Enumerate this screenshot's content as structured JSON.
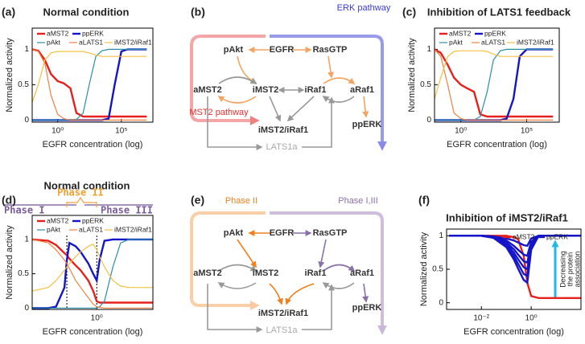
{
  "chart_data": [
    {
      "type": "line",
      "panel_label": "(a)",
      "title": "Normal condition",
      "x_label": "EGFR concentration (log)",
      "y_label": "Normalized activity",
      "x_scale": "log",
      "grid": false,
      "x": [
        0.01,
        0.03,
        0.1,
        0.3,
        1,
        3,
        10,
        30,
        100,
        300,
        1000,
        3000,
        10000,
        30000,
        100000,
        300000,
        1000000,
        10000000
      ],
      "xlim": [
        0.01,
        30000000
      ],
      "xticks": [
        {
          "value": 1,
          "label": "10⁰"
        },
        {
          "value": 100000,
          "label": "10⁵"
        }
      ],
      "ylim": [
        -0.03,
        1.3
      ],
      "yticks": [
        0,
        0.5,
        1
      ],
      "series": [
        {
          "name": "aMST2",
          "color": "#e8201c",
          "values": [
            1,
            0.98,
            0.85,
            0.65,
            0.55,
            0.52,
            0.45,
            0.1,
            0.05,
            0.05,
            0.05,
            0.05,
            0.05,
            0.05,
            0.05,
            0.05,
            0.05,
            0.05
          ]
        },
        {
          "name": "ppERK",
          "color": "#1414c8",
          "values": [
            0,
            0,
            0,
            0,
            0,
            0,
            0,
            0,
            0,
            0,
            0,
            0,
            0.02,
            0.5,
            0.97,
            1,
            1,
            1
          ]
        },
        {
          "name": "pAkt",
          "color": "#2a8fa8",
          "values": [
            0,
            0,
            0,
            0,
            0,
            0,
            0,
            0.01,
            0.1,
            0.5,
            0.9,
            0.98,
            1,
            1,
            1,
            1,
            1,
            1
          ]
        },
        {
          "name": "aLATS1",
          "color": "#f08040",
          "values": [
            1,
            0.97,
            0.8,
            0.35,
            0.08,
            0.02,
            0,
            0,
            0,
            0,
            0,
            0,
            0,
            0,
            0,
            0,
            0,
            0
          ]
        },
        {
          "name": "iMST2/iRaf1",
          "color": "#f5c040",
          "values": [
            0.25,
            0.5,
            0.85,
            0.95,
            0.97,
            0.97,
            0.97,
            0.97,
            0.97,
            0.95,
            0.92,
            0.9,
            0.9,
            0.9,
            0.9,
            0.9,
            0.9,
            0.9
          ]
        }
      ]
    },
    {
      "type": "line",
      "panel_label": "(c)",
      "title": "Inhibition of LATS1 feedback",
      "x_label": "EGFR concentration (log)",
      "y_label": "Normalized activity",
      "x_scale": "log",
      "grid": false,
      "x": [
        0.01,
        0.03,
        0.1,
        0.3,
        1,
        3,
        10,
        30,
        100,
        300,
        1000,
        3000,
        10000,
        30000,
        100000,
        300000,
        1000000,
        10000000
      ],
      "xlim": [
        0.01,
        30000000
      ],
      "xticks": [
        {
          "value": 1,
          "label": "10⁰"
        },
        {
          "value": 100000,
          "label": "10⁵"
        }
      ],
      "ylim": [
        -0.03,
        1.3
      ],
      "yticks": [
        0,
        0.5,
        1
      ],
      "series": [
        {
          "name": "aMST2",
          "color": "#e8201c",
          "values": [
            1,
            0.95,
            0.78,
            0.6,
            0.5,
            0.45,
            0.4,
            0.08,
            0.05,
            0.05,
            0.05,
            0.05,
            0.05,
            0.05,
            0.05,
            0.05,
            0.05,
            0.05
          ]
        },
        {
          "name": "ppERK",
          "color": "#1414c8",
          "values": [
            0,
            0,
            0,
            0,
            0,
            0,
            0,
            0,
            0,
            0,
            0,
            0.02,
            0.3,
            0.9,
            1,
            1,
            1,
            1
          ]
        },
        {
          "name": "pAkt",
          "color": "#2a8fa8",
          "values": [
            0,
            0,
            0,
            0,
            0,
            0,
            0,
            0.05,
            0.4,
            0.85,
            0.98,
            1,
            1,
            1,
            1,
            1,
            1,
            1
          ]
        },
        {
          "name": "aLATS1",
          "color": "#f08040",
          "values": [
            1,
            0.9,
            0.5,
            0.1,
            0.02,
            0,
            0,
            0,
            0,
            0,
            0,
            0,
            0,
            0,
            0,
            0,
            0,
            0
          ]
        },
        {
          "name": "iMST2/iRaf1",
          "color": "#f5c040",
          "values": [
            0.3,
            0.6,
            0.9,
            0.97,
            0.98,
            0.98,
            0.98,
            0.98,
            0.97,
            0.93,
            0.9,
            0.9,
            0.9,
            0.9,
            0.9,
            0.9,
            0.9,
            0.9
          ]
        }
      ]
    },
    {
      "type": "line",
      "panel_label": "(d)",
      "title": "Normal condition",
      "x_label": "EGFR concentration (log)",
      "y_label": "Normalized activity",
      "x_scale": "log",
      "grid": false,
      "phases": [
        "Phase I",
        "Phase II",
        "Phase III"
      ],
      "vlines": [
        0.014,
        1
      ],
      "x": [
        0.0001,
        0.001,
        0.003,
        0.01,
        0.014,
        0.02,
        0.05,
        0.1,
        0.3,
        0.6,
        1,
        1.5,
        3,
        10,
        30,
        100,
        1000,
        3000
      ],
      "xlim": [
        0.0001,
        3000
      ],
      "xticks": [
        {
          "value": 1,
          "label": "10⁰"
        }
      ],
      "ylim": [
        -0.02,
        1.35
      ],
      "yticks": [
        0,
        0.5,
        1
      ],
      "series": [
        {
          "name": "aMST2",
          "color": "#e8201c",
          "values": [
            1,
            0.98,
            0.92,
            0.8,
            0.77,
            0.72,
            0.62,
            0.55,
            0.4,
            0.25,
            0.1,
            0.08,
            0.08,
            0.08,
            0.08,
            0.08,
            0.08,
            0.08
          ]
        },
        {
          "name": "ppERK",
          "color": "#1414c8",
          "values": [
            0,
            0,
            0.02,
            0.3,
            0.7,
            0.95,
            0.9,
            0.82,
            0.65,
            0.5,
            0.4,
            0.7,
            0.98,
            1,
            1,
            1,
            1,
            1
          ]
        },
        {
          "name": "pAkt",
          "color": "#2a8fa8",
          "values": [
            0,
            0,
            0,
            0,
            0,
            0,
            0,
            0,
            0,
            0,
            0,
            0.02,
            0.1,
            0.6,
            0.95,
            1,
            1,
            1
          ]
        },
        {
          "name": "aLATS1",
          "color": "#f08040",
          "values": [
            1,
            0.95,
            0.85,
            0.7,
            0.65,
            0.58,
            0.4,
            0.3,
            0.15,
            0.06,
            0.02,
            0.01,
            0,
            0,
            0,
            0,
            0,
            0
          ]
        },
        {
          "name": "iMST2/iRaf1",
          "color": "#f5c040",
          "values": [
            0.25,
            0.3,
            0.4,
            0.55,
            0.6,
            0.65,
            0.75,
            0.82,
            0.9,
            0.93,
            0.85,
            0.75,
            0.6,
            0.4,
            0.32,
            0.3,
            0.3,
            0.3
          ]
        }
      ]
    },
    {
      "type": "line",
      "panel_label": "(f)",
      "title": "Inhibition of iMST2/iRaf1",
      "x_label": "EGFR concentration (log)",
      "y_label": "Normalized activity",
      "x_scale": "log",
      "grid": false,
      "annotation": [
        "Decreasing",
        "the protein",
        "association"
      ],
      "x": [
        0.0005,
        0.001,
        0.01,
        0.03,
        0.1,
        0.2,
        0.3,
        0.5,
        0.7,
        1,
        2,
        10,
        100
      ],
      "xlim": [
        0.0004,
        100
      ],
      "xticks": [
        {
          "value": 0.01,
          "label": "10⁻²"
        },
        {
          "value": 1,
          "label": "10⁰"
        }
      ],
      "ylim": [
        -0.1,
        1.1
      ],
      "yticks": [
        0,
        0.5,
        1
      ],
      "series": [
        {
          "name": "aMST2",
          "color": "#e8201c",
          "values": [
            1,
            1,
            1,
            1,
            1,
            0.98,
            0.95,
            0.7,
            0.3,
            0.1,
            0.07,
            0.07,
            0.07
          ]
        },
        {
          "name": "ppERK",
          "color": "#1414c8",
          "values": [
            1,
            1,
            1,
            0.99,
            0.96,
            0.93,
            0.9,
            0.86,
            0.85,
            0.96,
            1,
            1,
            1
          ]
        },
        {
          "color": "#1414c8",
          "values": [
            1,
            1,
            1,
            0.99,
            0.93,
            0.85,
            0.79,
            0.72,
            0.7,
            0.91,
            1,
            1,
            1
          ]
        },
        {
          "color": "#1414c8",
          "values": [
            1,
            1,
            1,
            0.98,
            0.9,
            0.8,
            0.72,
            0.62,
            0.6,
            0.88,
            1,
            1,
            1
          ]
        },
        {
          "color": "#1414c8",
          "values": [
            1,
            1,
            1,
            0.98,
            0.88,
            0.75,
            0.65,
            0.53,
            0.5,
            0.85,
            1,
            1,
            1
          ]
        },
        {
          "color": "#1414c8",
          "values": [
            1,
            1,
            1,
            0.97,
            0.85,
            0.7,
            0.58,
            0.43,
            0.4,
            0.82,
            1,
            1,
            1
          ]
        },
        {
          "color": "#1414c8",
          "values": [
            1,
            1,
            1,
            0.97,
            0.83,
            0.65,
            0.51,
            0.34,
            0.3,
            0.79,
            1,
            1,
            1
          ]
        }
      ]
    }
  ],
  "diagrams": [
    {
      "panel_label": "(b)",
      "nodes": [
        "EGFR",
        "pAkt",
        "RasGTP",
        "aMST2",
        "iMST2",
        "iRaf1",
        "aRaf1",
        "iMST2/iRaf1",
        "ppERK",
        "LATS1a"
      ],
      "pathways": [
        "MST2 pathway",
        "ERK pathway"
      ]
    },
    {
      "panel_label": "(e)",
      "nodes": [
        "EGFR",
        "pAkt",
        "RasGTP",
        "aMST2",
        "iMST2",
        "iRaf1",
        "aRaf1",
        "iMST2/iRaf1",
        "ppERK",
        "LATS1a"
      ],
      "phases": [
        "Phase II",
        "Phase I,III"
      ]
    }
  ]
}
